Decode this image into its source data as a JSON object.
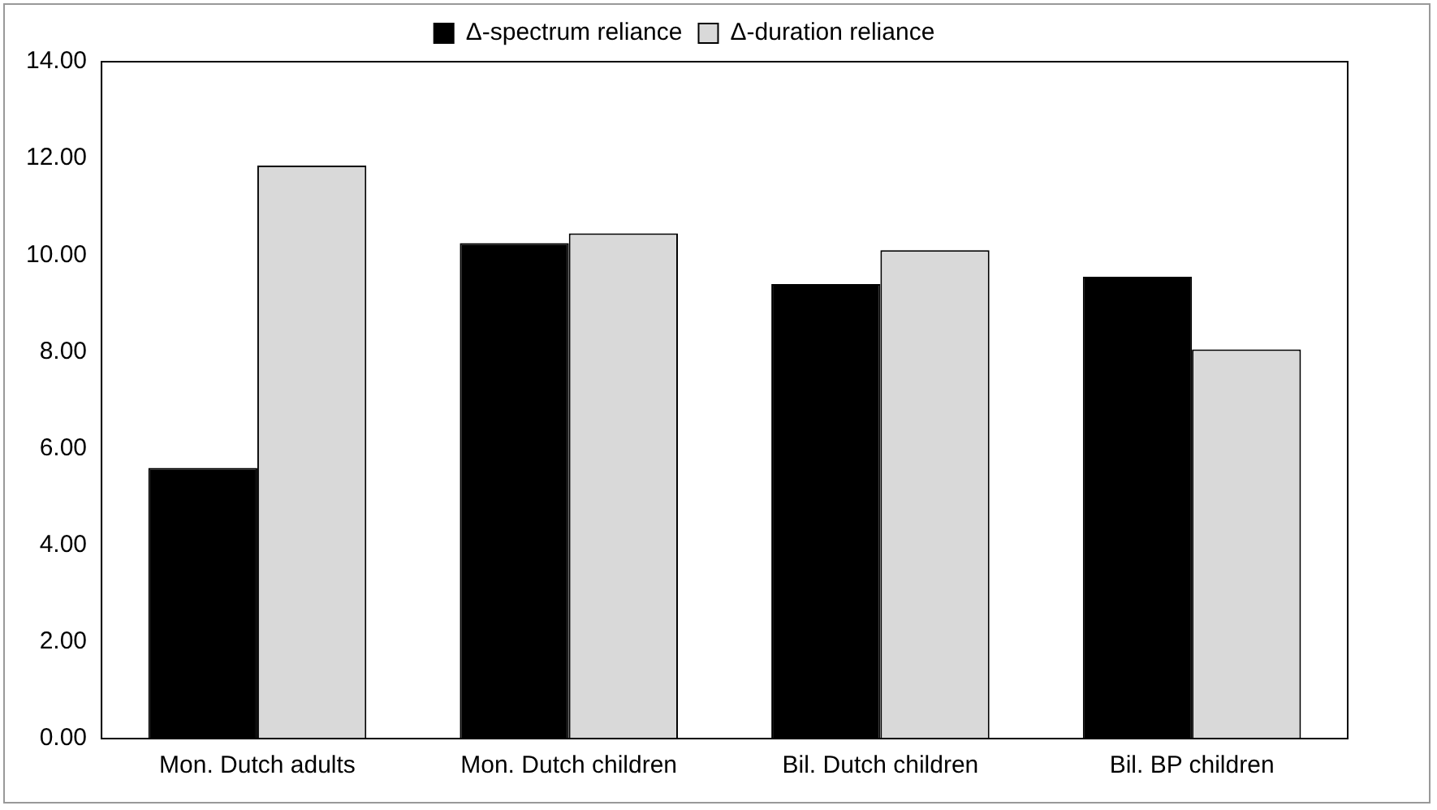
{
  "chart_data": {
    "type": "bar",
    "categories": [
      "Mon. Dutch adults",
      "Mon. Dutch children",
      "Bil. Dutch children",
      "Bil. BP children"
    ],
    "series": [
      {
        "name": "Δ-spectrum reliance",
        "color": "#000000",
        "values": [
          5.6,
          10.25,
          9.4,
          9.55
        ]
      },
      {
        "name": "Δ-duration reliance",
        "color": "#d9d9d9",
        "values": [
          11.85,
          10.45,
          10.1,
          8.05
        ]
      }
    ],
    "ylim": [
      0,
      14
    ],
    "yticks": [
      {
        "value": 0,
        "label": "0.00"
      },
      {
        "value": 2,
        "label": "2.00"
      },
      {
        "value": 4,
        "label": "4.00"
      },
      {
        "value": 6,
        "label": "6.00"
      },
      {
        "value": 8,
        "label": "8.00"
      },
      {
        "value": 10,
        "label": "10.00"
      },
      {
        "value": 12,
        "label": "12.00"
      },
      {
        "value": 14,
        "label": "14.00"
      }
    ],
    "grid": false,
    "legend": "top"
  }
}
